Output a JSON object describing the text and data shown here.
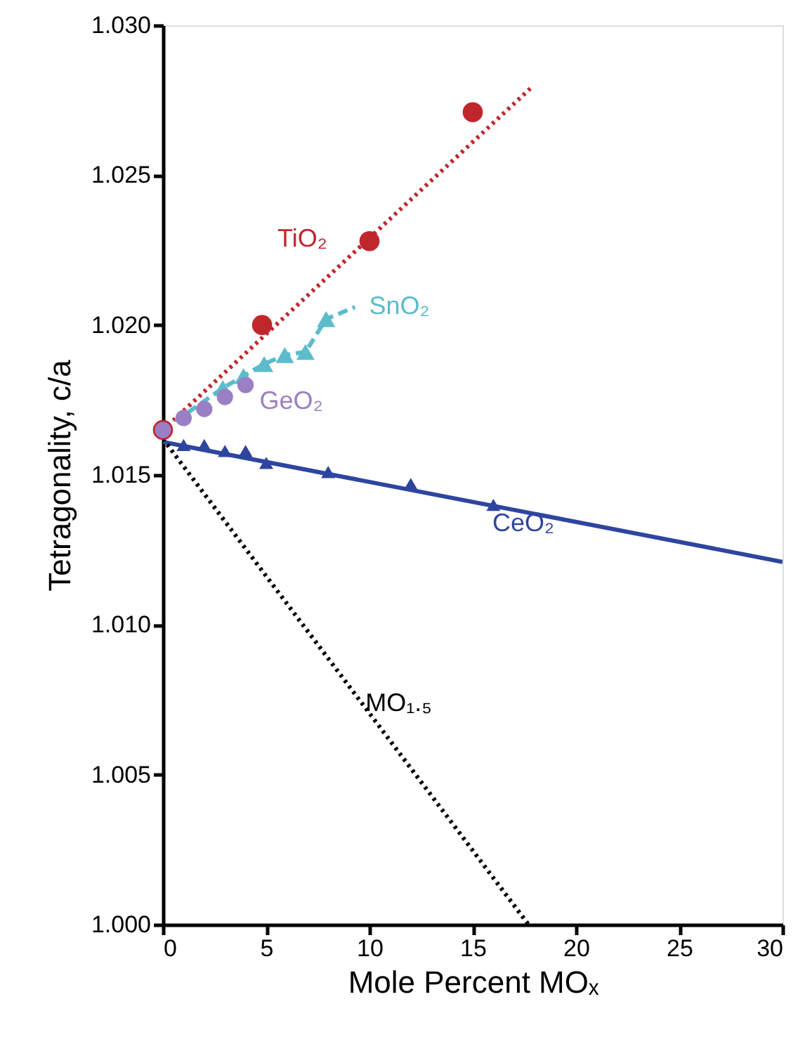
{
  "chart_data": {
    "type": "scatter",
    "xlabel": "Mole Percent MOₓ",
    "ylabel": "Tetragonality, c/a",
    "xlim": [
      0,
      30
    ],
    "xticks": [
      0,
      5,
      10,
      15,
      20,
      25,
      30
    ],
    "ylim": [
      1.0,
      1.03
    ],
    "yticks": [
      {
        "value": 1.0,
        "label": "1.000"
      },
      {
        "value": 1.005,
        "label": "1.005"
      },
      {
        "value": 1.01,
        "label": "1.010"
      },
      {
        "value": 1.015,
        "label": "1.015"
      },
      {
        "value": 1.02,
        "label": "1.020"
      },
      {
        "value": 1.025,
        "label": "1.025"
      },
      {
        "value": 1.03,
        "label": "1.030"
      }
    ],
    "series": [
      {
        "type": "line",
        "name": "TiO₂",
        "color": "#c0272d",
        "line_style": "dotted",
        "marker": "none",
        "x": [
          0,
          17.8
        ],
        "values": [
          1.0165,
          1.0279
        ]
      },
      {
        "type": "line",
        "name": "SnO₂",
        "color": "#5bbccc",
        "line_style": "dashed",
        "marker": "none",
        "x": [
          0,
          2.9,
          3.9,
          4.9,
          5.9,
          6.9,
          7.9,
          9.3
        ],
        "values": [
          1.0165,
          1.0179,
          1.0183,
          1.0187,
          1.019,
          1.0191,
          1.0202,
          1.0206
        ]
      },
      {
        "type": "line",
        "name": "CeO₂",
        "color": "#2e45a0",
        "line_style": "solid",
        "marker": "none",
        "x": [
          0,
          30
        ],
        "values": [
          1.0161,
          1.0121
        ]
      },
      {
        "type": "line",
        "name": "MO₁.₅",
        "color": "#000000",
        "line_style": "dotted",
        "marker": "none",
        "x": [
          0,
          17.7
        ],
        "values": [
          1.0162,
          1.0
        ]
      },
      {
        "type": "scatter",
        "color": "#c0272d",
        "marker": "circle",
        "x": [
          0,
          4.8,
          10,
          15
        ],
        "values": [
          1.0165,
          1.02,
          1.0228,
          1.0271
        ]
      },
      {
        "type": "scatter",
        "color": "#5bbccc",
        "marker": "triangle",
        "x": [
          2.9,
          3.9,
          4.9,
          5.9,
          6.9,
          7.9
        ],
        "values": [
          1.0179,
          1.0183,
          1.0187,
          1.019,
          1.0191,
          1.0202
        ]
      },
      {
        "type": "scatter",
        "name": "GeO₂",
        "color": "#9b7fc4",
        "marker": "circle",
        "x": [
          0,
          1,
          2,
          3,
          4
        ],
        "values": [
          1.0165,
          1.0169,
          1.0172,
          1.0176,
          1.018
        ]
      },
      {
        "type": "scatter",
        "color": "#2e45a0",
        "marker": "triangle",
        "x": [
          1,
          2,
          3,
          4,
          5,
          8,
          12,
          16
        ],
        "values": [
          1.016,
          1.016,
          1.0158,
          1.0158,
          1.0154,
          1.0151,
          1.0147,
          1.014
        ]
      }
    ]
  }
}
